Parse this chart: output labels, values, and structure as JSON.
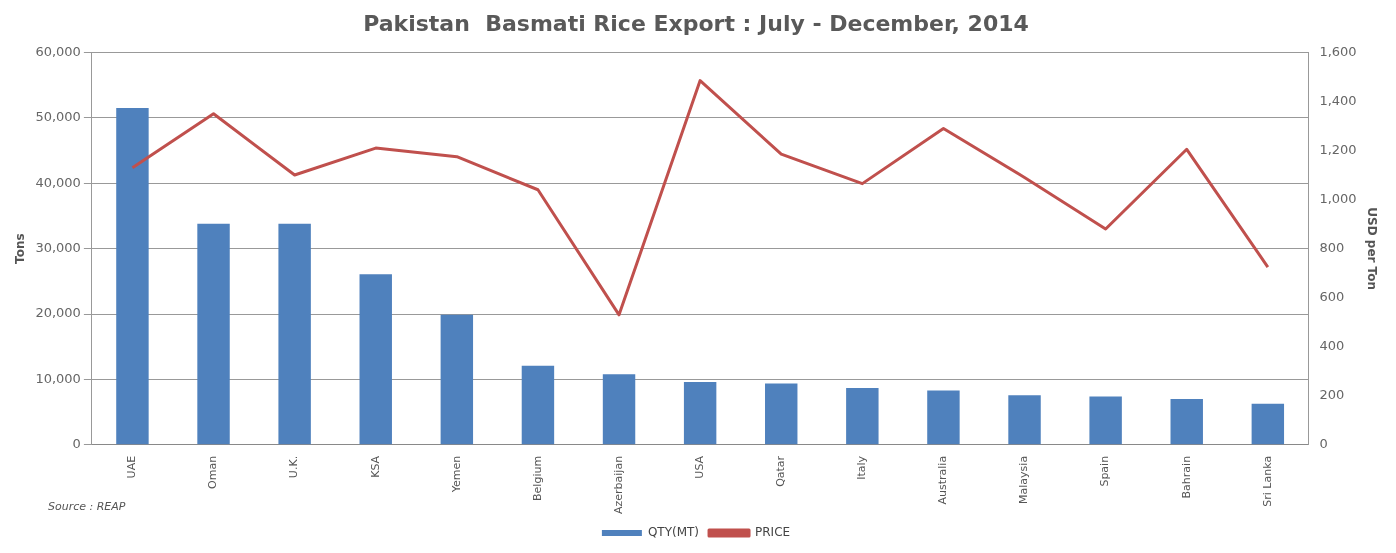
{
  "chart_data": {
    "type": "bar",
    "title": "Pakistan  Basmati Rice Export : July - December, 2014",
    "ylabel": "Tons",
    "y2label": "USD per Ton",
    "categories": [
      "UAE",
      "Oman",
      "U.K.",
      "KSA",
      "Yemen",
      "Belgium",
      "Azerbaijan",
      "USA",
      "Qatar",
      "Italy",
      "Australia",
      "Malaysia",
      "Spain",
      "Bahrain",
      "Sri Lanka"
    ],
    "series": [
      {
        "name": "QTY(MT)",
        "color": "#4f81bd",
        "values": [
          51500,
          33800,
          33800,
          26100,
          19900,
          12100,
          10800,
          9600,
          9400,
          8700,
          8300,
          7600,
          7400,
          7000,
          6300
        ]
      },
      {
        "name": "PRICE",
        "type": "line",
        "axis": "y2",
        "color": "#c0504d",
        "values": [
          1130,
          1350,
          1100,
          1210,
          1175,
          1040,
          530,
          1485,
          1185,
          1065,
          1290,
          1090,
          880,
          1205,
          725
        ]
      }
    ],
    "ylim": [
      0,
      60000
    ],
    "yticks": [
      {
        "value": 0,
        "label": "0"
      },
      {
        "value": 10000,
        "label": "10,000"
      },
      {
        "value": 20000,
        "label": "20,000"
      },
      {
        "value": 30000,
        "label": "30,000"
      },
      {
        "value": 40000,
        "label": "40,000"
      },
      {
        "value": 50000,
        "label": "50,000"
      },
      {
        "value": 60000,
        "label": "60,000"
      }
    ],
    "y2lim": [
      0,
      1600
    ],
    "y2ticks": [
      {
        "value": 0,
        "label": "0"
      },
      {
        "value": 200,
        "label": "200"
      },
      {
        "value": 400,
        "label": "400"
      },
      {
        "value": 600,
        "label": "600"
      },
      {
        "value": 800,
        "label": "800"
      },
      {
        "value": 1000,
        "label": "1,000"
      },
      {
        "value": 1200,
        "label": "1,200"
      },
      {
        "value": 1400,
        "label": "1,400"
      },
      {
        "value": 1600,
        "label": "1,600"
      }
    ],
    "grid": "y",
    "legend": "bottom",
    "marker": "none",
    "annotations": [
      "Source : REAP"
    ]
  }
}
